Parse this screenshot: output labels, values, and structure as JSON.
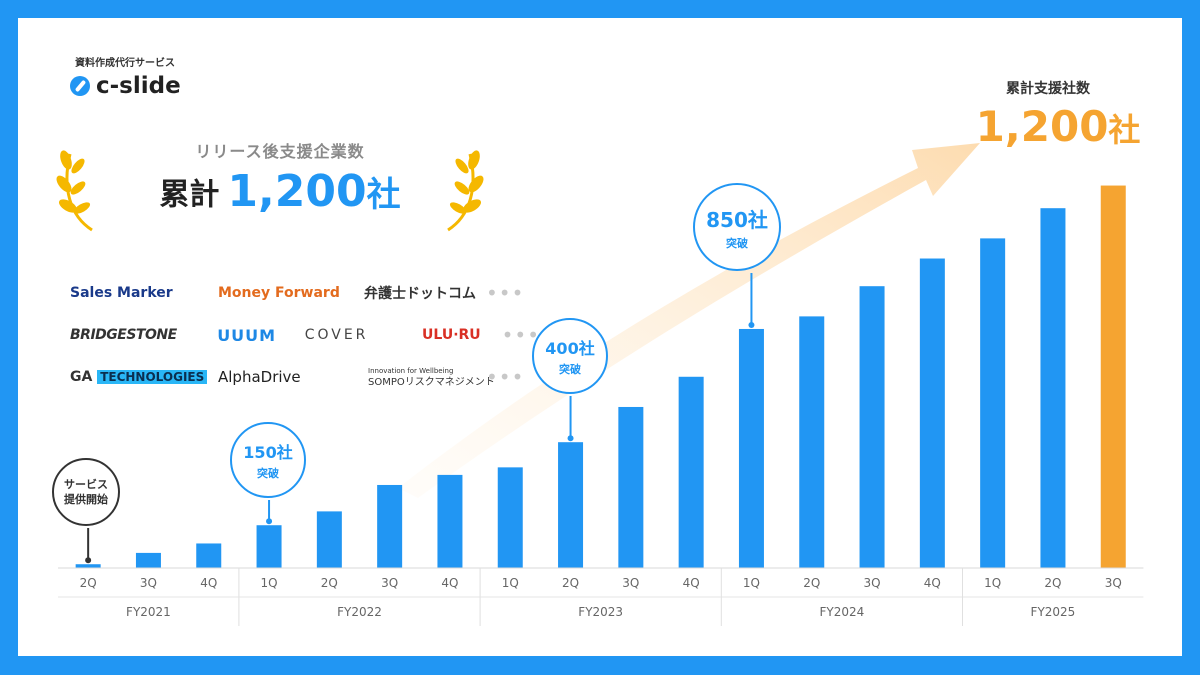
{
  "brand": {
    "tagline": "資料作成代行サービス",
    "name": "c-slide",
    "icon": "c-slide-logo-icon"
  },
  "headline": {
    "subtitle": "リリース後支援企業数",
    "prefix": "累計",
    "number": "1,200",
    "unit": "社"
  },
  "logos": {
    "rows": [
      [
        "Sales Marker",
        "Money Forward",
        "弁護士ドットコム"
      ],
      [
        "BRIDGESTONE",
        "UUUM",
        "COVER",
        "ULU·RU"
      ],
      [
        "GA",
        "TECHNOLOGIES",
        "AlphaDrive",
        "Innovation for Wellbeing",
        "SOMPOリスクマネジメント"
      ]
    ],
    "more": "•••"
  },
  "milestones": [
    {
      "line1": "サービス",
      "line2": "提供開始"
    },
    {
      "num": "150社",
      "sub": "突破"
    },
    {
      "num": "400社",
      "sub": "突破"
    },
    {
      "num": "850社",
      "sub": "突破"
    }
  ],
  "summary": {
    "title": "累計支援社数",
    "number": "1,200",
    "unit": "社"
  },
  "colors": {
    "frame": "#2196f3",
    "bar": "#2196f3",
    "highlight": "#f5a431",
    "arrow": "#fde4c4"
  },
  "chart_data": {
    "type": "bar",
    "categories": [
      "2Q",
      "3Q",
      "4Q",
      "1Q",
      "2Q",
      "3Q",
      "4Q",
      "1Q",
      "2Q",
      "3Q",
      "4Q",
      "1Q",
      "2Q",
      "3Q",
      "4Q",
      "1Q",
      "2Q",
      "3Q"
    ],
    "fiscal_years": [
      {
        "label": "FY2021",
        "span": 3
      },
      {
        "label": "FY2022",
        "span": 4
      },
      {
        "label": "FY2023",
        "span": 4
      },
      {
        "label": "FY2024",
        "span": 4
      },
      {
        "label": "FY2025",
        "span": 3
      }
    ],
    "values": [
      6,
      24,
      39,
      68,
      90,
      132,
      148,
      160,
      200,
      256,
      304,
      380,
      400,
      448,
      492,
      524,
      572,
      608
    ],
    "highlight_index": 17,
    "ylim": [
      0,
      620
    ]
  }
}
